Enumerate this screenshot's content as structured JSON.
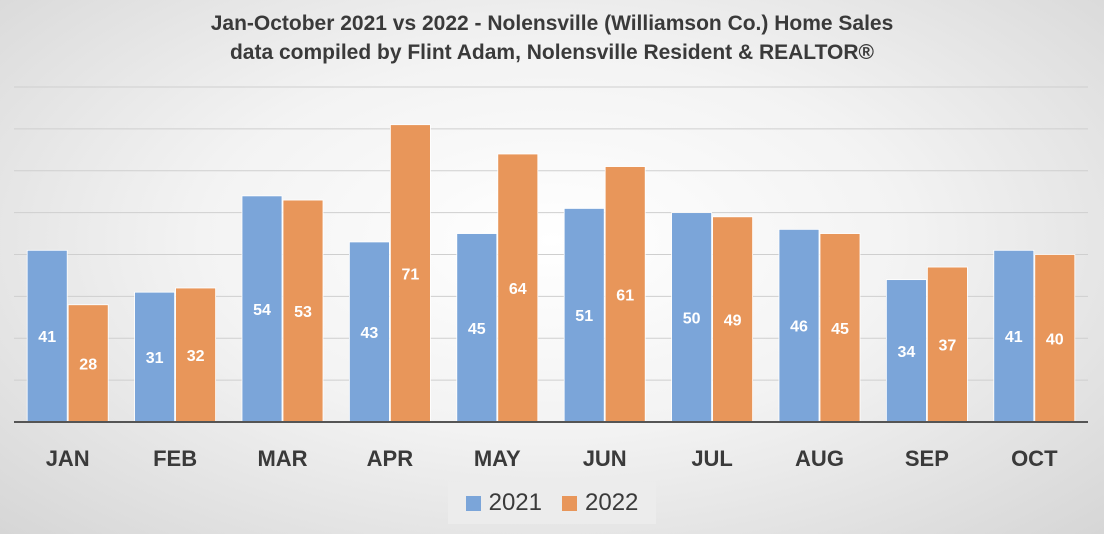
{
  "chart_data": {
    "type": "bar",
    "title": "Jan-October 2021 vs 2022 - Nolensville (Williamson Co.) Home Sales",
    "subtitle": "data compiled by Flint Adam, Nolensville Resident & REALTOR®",
    "categories": [
      "JAN",
      "FEB",
      "MAR",
      "APR",
      "MAY",
      "JUN",
      "JUL",
      "AUG",
      "SEP",
      "OCT"
    ],
    "series": [
      {
        "name": "2021",
        "color": "#7ba5d9",
        "values": [
          41,
          31,
          54,
          43,
          45,
          51,
          50,
          46,
          34,
          41
        ]
      },
      {
        "name": "2022",
        "color": "#e8965a",
        "values": [
          28,
          32,
          53,
          71,
          64,
          61,
          49,
          45,
          37,
          40
        ]
      }
    ],
    "ylim": [
      0,
      80
    ],
    "grid": true,
    "legend": "bottom",
    "data_labels": true
  }
}
